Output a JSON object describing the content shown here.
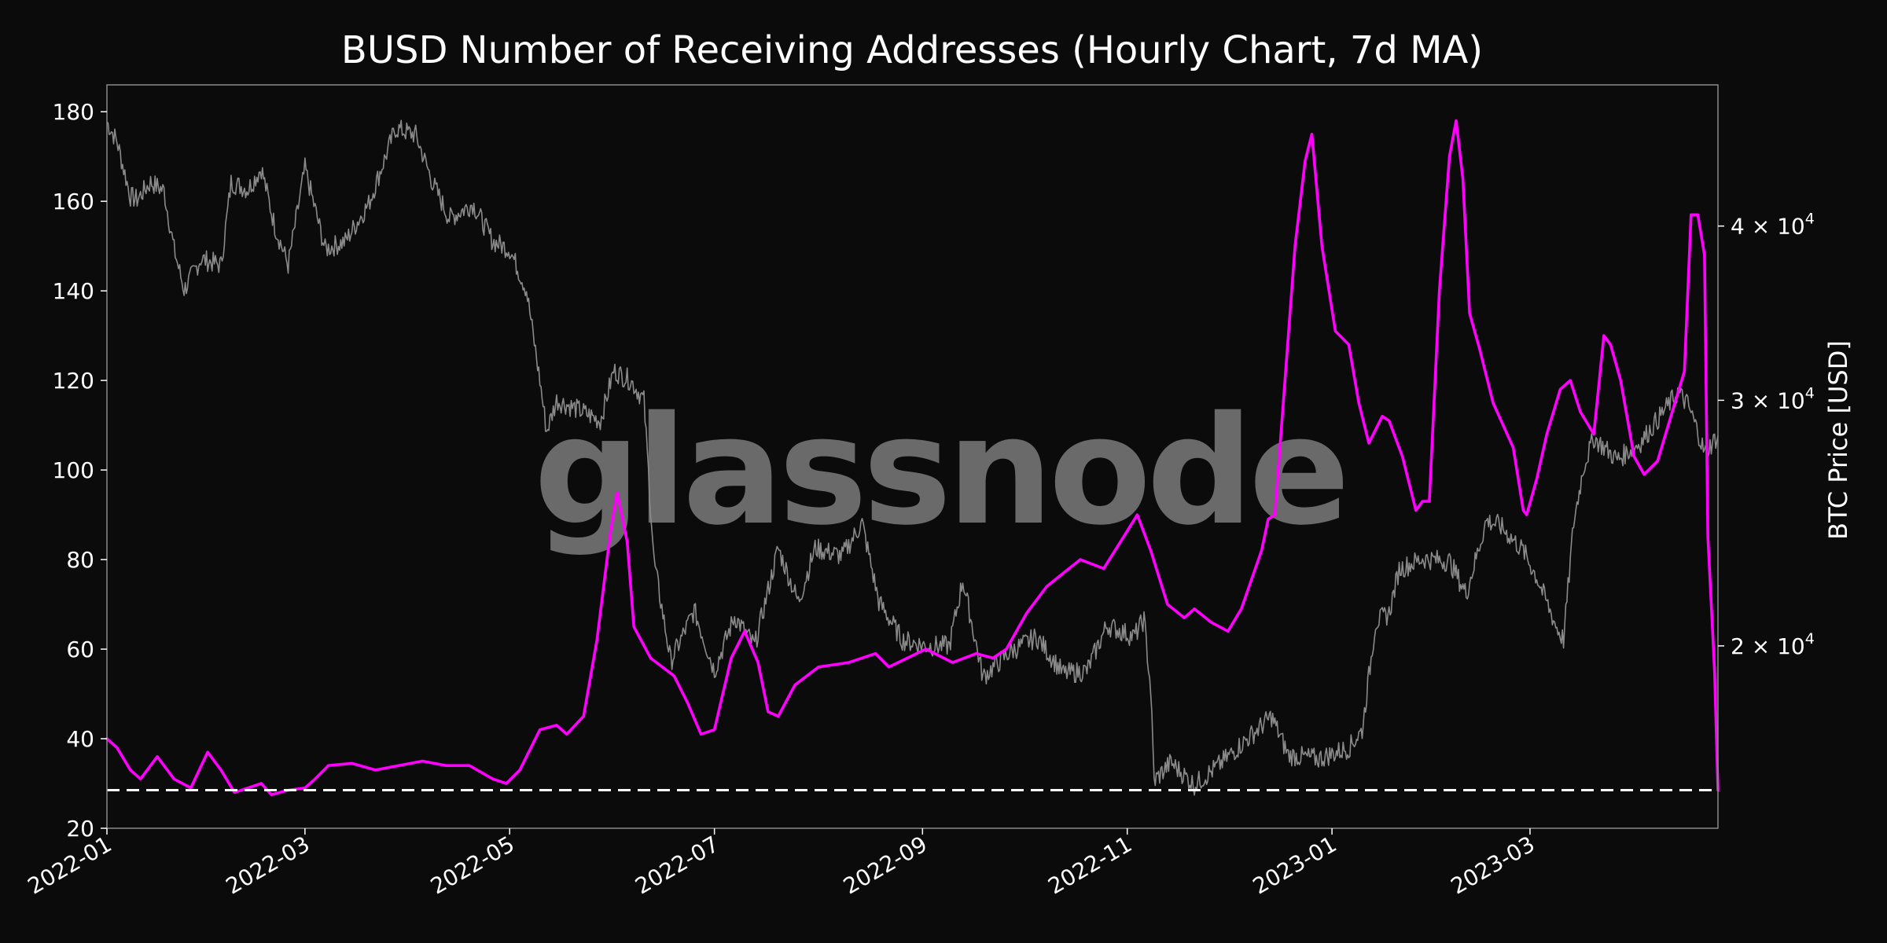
{
  "chart_data": {
    "type": "line",
    "title": "BUSD Number of Receiving Addresses (Hourly Chart, 7d MA)",
    "xlabel": "",
    "ylabel": "",
    "ylabel_right": "BTC Price [USD]",
    "watermark": "glassnode",
    "x_range": [
      "2022-01-01",
      "2023-04-26"
    ],
    "x_ticks": [
      "2022-01",
      "2022-03",
      "2022-05",
      "2022-07",
      "2022-09",
      "2022-11",
      "2023-01",
      "2023-03"
    ],
    "ylim": [
      20,
      186
    ],
    "y_ticks": [
      20,
      40,
      60,
      80,
      100,
      120,
      140,
      160,
      180
    ],
    "y2_scale": "log",
    "y2lim": [
      14800,
      50500
    ],
    "y2_ticks": [
      {
        "value": 20000,
        "mantissa": "2",
        "exp": "4"
      },
      {
        "value": 30000,
        "mantissa": "3",
        "exp": "4"
      },
      {
        "value": 40000,
        "mantissa": "4",
        "exp": "4"
      }
    ],
    "reference_line": {
      "value": 28.5,
      "style": "dashed",
      "color": "#ffffff"
    },
    "grid": false,
    "colors": {
      "receiving_addresses": "#ff00ff",
      "btc_price": "#8a8a8a",
      "background": "#0b0b0b"
    },
    "series": [
      {
        "axis": "left",
        "points": [
          [
            "2022-01-01",
            40
          ],
          [
            "2022-01-04",
            38
          ],
          [
            "2022-01-08",
            33
          ],
          [
            "2022-01-11",
            31
          ],
          [
            "2022-01-16",
            36
          ],
          [
            "2022-01-21",
            31
          ],
          [
            "2022-01-26",
            29
          ],
          [
            "2022-01-31",
            37
          ],
          [
            "2022-02-04",
            33
          ],
          [
            "2022-02-08",
            28
          ],
          [
            "2022-02-12",
            29
          ],
          [
            "2022-02-16",
            30
          ],
          [
            "2022-02-19",
            27.5
          ],
          [
            "2022-02-24",
            28.5
          ],
          [
            "2022-03-01",
            29
          ],
          [
            "2022-03-04",
            31
          ],
          [
            "2022-03-08",
            34
          ],
          [
            "2022-03-15",
            34.5
          ],
          [
            "2022-03-22",
            33
          ],
          [
            "2022-03-29",
            34
          ],
          [
            "2022-04-05",
            35
          ],
          [
            "2022-04-12",
            34
          ],
          [
            "2022-04-19",
            34
          ],
          [
            "2022-04-26",
            31
          ],
          [
            "2022-04-30",
            30
          ],
          [
            "2022-05-04",
            33
          ],
          [
            "2022-05-10",
            42
          ],
          [
            "2022-05-15",
            43
          ],
          [
            "2022-05-18",
            41
          ],
          [
            "2022-05-23",
            45
          ],
          [
            "2022-05-27",
            62
          ],
          [
            "2022-05-31",
            86
          ],
          [
            "2022-06-02",
            95
          ],
          [
            "2022-06-05",
            84
          ],
          [
            "2022-06-07",
            65
          ],
          [
            "2022-06-12",
            58
          ],
          [
            "2022-06-19",
            54
          ],
          [
            "2022-06-23",
            48
          ],
          [
            "2022-06-27",
            41
          ],
          [
            "2022-07-01",
            42
          ],
          [
            "2022-07-06",
            58
          ],
          [
            "2022-07-10",
            64
          ],
          [
            "2022-07-14",
            57
          ],
          [
            "2022-07-17",
            46
          ],
          [
            "2022-07-20",
            45
          ],
          [
            "2022-07-25",
            52
          ],
          [
            "2022-08-01",
            56
          ],
          [
            "2022-08-10",
            57
          ],
          [
            "2022-08-18",
            59
          ],
          [
            "2022-08-22",
            56
          ],
          [
            "2022-09-02",
            60
          ],
          [
            "2022-09-10",
            57
          ],
          [
            "2022-09-17",
            59
          ],
          [
            "2022-09-22",
            58
          ],
          [
            "2022-09-26",
            60
          ],
          [
            "2022-10-02",
            68
          ],
          [
            "2022-10-08",
            74
          ],
          [
            "2022-10-13",
            77
          ],
          [
            "2022-10-18",
            80
          ],
          [
            "2022-10-25",
            78
          ],
          [
            "2022-10-30",
            84
          ],
          [
            "2022-11-04",
            90
          ],
          [
            "2022-11-08",
            82
          ],
          [
            "2022-11-13",
            70
          ],
          [
            "2022-11-18",
            67
          ],
          [
            "2022-11-21",
            69
          ],
          [
            "2022-11-26",
            66
          ],
          [
            "2022-12-01",
            64
          ],
          [
            "2022-12-05",
            69
          ],
          [
            "2022-12-11",
            82
          ],
          [
            "2022-12-13",
            89
          ],
          [
            "2022-12-15",
            90
          ],
          [
            "2022-12-18",
            120
          ],
          [
            "2022-12-21",
            150
          ],
          [
            "2022-12-24",
            169
          ],
          [
            "2022-12-26",
            175
          ],
          [
            "2022-12-29",
            150
          ],
          [
            "2023-01-02",
            131
          ],
          [
            "2023-01-06",
            128
          ],
          [
            "2023-01-09",
            115
          ],
          [
            "2023-01-12",
            106
          ],
          [
            "2023-01-16",
            112
          ],
          [
            "2023-01-18",
            111
          ],
          [
            "2023-01-22",
            103
          ],
          [
            "2023-01-26",
            91
          ],
          [
            "2023-01-28",
            93
          ],
          [
            "2023-01-30",
            93
          ],
          [
            "2023-02-02",
            140
          ],
          [
            "2023-02-05",
            170
          ],
          [
            "2023-02-07",
            178
          ],
          [
            "2023-02-09",
            165
          ],
          [
            "2023-02-11",
            135
          ],
          [
            "2023-02-14",
            127
          ],
          [
            "2023-02-18",
            115
          ],
          [
            "2023-02-21",
            110
          ],
          [
            "2023-02-24",
            105
          ],
          [
            "2023-02-27",
            91
          ],
          [
            "2023-02-28",
            90
          ],
          [
            "2023-03-03",
            98
          ],
          [
            "2023-03-06",
            108
          ],
          [
            "2023-03-10",
            118
          ],
          [
            "2023-03-13",
            120
          ],
          [
            "2023-03-16",
            113
          ],
          [
            "2023-03-20",
            108
          ],
          [
            "2023-03-23",
            130
          ],
          [
            "2023-03-25",
            128
          ],
          [
            "2023-03-28",
            120
          ],
          [
            "2023-04-01",
            103
          ],
          [
            "2023-04-04",
            99
          ],
          [
            "2023-04-08",
            102
          ],
          [
            "2023-04-12",
            112
          ],
          [
            "2023-04-16",
            122
          ],
          [
            "2023-04-18",
            157
          ],
          [
            "2023-04-20",
            157
          ],
          [
            "2023-04-22",
            148
          ],
          [
            "2023-04-23",
            85
          ],
          [
            "2023-04-24",
            70
          ],
          [
            "2023-04-25",
            55
          ],
          [
            "2023-04-26",
            28.5
          ]
        ]
      },
      {
        "axis": "right",
        "points": [
          [
            "2022-01-01",
            47500
          ],
          [
            "2022-01-04",
            46000
          ],
          [
            "2022-01-08",
            42000
          ],
          [
            "2022-01-10",
            41800
          ],
          [
            "2022-01-14",
            43000
          ],
          [
            "2022-01-18",
            42400
          ],
          [
            "2022-01-21",
            38500
          ],
          [
            "2022-01-24",
            36000
          ],
          [
            "2022-01-29",
            37900
          ],
          [
            "2022-02-04",
            37500
          ],
          [
            "2022-02-07",
            43000
          ],
          [
            "2022-02-12",
            42500
          ],
          [
            "2022-02-16",
            44000
          ],
          [
            "2022-02-20",
            40000
          ],
          [
            "2022-02-24",
            37500
          ],
          [
            "2022-03-01",
            44000
          ],
          [
            "2022-03-07",
            38500
          ],
          [
            "2022-03-13",
            39000
          ],
          [
            "2022-03-20",
            41500
          ],
          [
            "2022-03-28",
            47000
          ],
          [
            "2022-04-03",
            46500
          ],
          [
            "2022-04-08",
            43000
          ],
          [
            "2022-04-13",
            40500
          ],
          [
            "2022-04-20",
            41500
          ],
          [
            "2022-04-26",
            39000
          ],
          [
            "2022-05-01",
            38500
          ],
          [
            "2022-05-06",
            36000
          ],
          [
            "2022-05-10",
            31000
          ],
          [
            "2022-05-12",
            28500
          ],
          [
            "2022-05-15",
            30000
          ],
          [
            "2022-05-22",
            29500
          ],
          [
            "2022-05-28",
            29000
          ],
          [
            "2022-06-01",
            31500
          ],
          [
            "2022-06-06",
            31000
          ],
          [
            "2022-06-10",
            30000
          ],
          [
            "2022-06-13",
            23000
          ],
          [
            "2022-06-18",
            19500
          ],
          [
            "2022-06-25",
            21200
          ],
          [
            "2022-07-01",
            19200
          ],
          [
            "2022-07-07",
            21000
          ],
          [
            "2022-07-13",
            20000
          ],
          [
            "2022-07-20",
            23500
          ],
          [
            "2022-07-26",
            21500
          ],
          [
            "2022-07-31",
            23500
          ],
          [
            "2022-08-08",
            23200
          ],
          [
            "2022-08-14",
            24500
          ],
          [
            "2022-08-19",
            21500
          ],
          [
            "2022-08-26",
            20200
          ],
          [
            "2022-09-02",
            20000
          ],
          [
            "2022-09-09",
            20000
          ],
          [
            "2022-09-13",
            22300
          ],
          [
            "2022-09-19",
            19000
          ],
          [
            "2022-09-27",
            19800
          ],
          [
            "2022-10-05",
            20300
          ],
          [
            "2022-10-13",
            19100
          ],
          [
            "2022-10-20",
            19200
          ],
          [
            "2022-10-26",
            20700
          ],
          [
            "2022-11-03",
            20300
          ],
          [
            "2022-11-06",
            20900
          ],
          [
            "2022-11-08",
            18600
          ],
          [
            "2022-11-09",
            16000
          ],
          [
            "2022-11-14",
            16500
          ],
          [
            "2022-11-21",
            15900
          ],
          [
            "2022-11-28",
            16400
          ],
          [
            "2022-12-05",
            17000
          ],
          [
            "2022-12-14",
            17800
          ],
          [
            "2022-12-19",
            16700
          ],
          [
            "2022-12-28",
            16600
          ],
          [
            "2023-01-06",
            16900
          ],
          [
            "2023-01-10",
            17400
          ],
          [
            "2023-01-14",
            20800
          ],
          [
            "2023-01-18",
            21100
          ],
          [
            "2023-01-21",
            22700
          ],
          [
            "2023-01-28",
            23100
          ],
          [
            "2023-02-05",
            23000
          ],
          [
            "2023-02-10",
            21800
          ],
          [
            "2023-02-16",
            24600
          ],
          [
            "2023-02-20",
            24400
          ],
          [
            "2023-02-27",
            23400
          ],
          [
            "2023-03-03",
            22400
          ],
          [
            "2023-03-09",
            20600
          ],
          [
            "2023-03-11",
            20200
          ],
          [
            "2023-03-14",
            24500
          ],
          [
            "2023-03-17",
            26900
          ],
          [
            "2023-03-20",
            28200
          ],
          [
            "2023-03-27",
            27200
          ],
          [
            "2023-04-03",
            28000
          ],
          [
            "2023-04-10",
            29500
          ],
          [
            "2023-04-14",
            30400
          ],
          [
            "2023-04-17",
            29800
          ],
          [
            "2023-04-20",
            28500
          ],
          [
            "2023-04-22",
            27500
          ],
          [
            "2023-04-26",
            28300
          ]
        ]
      }
    ]
  }
}
